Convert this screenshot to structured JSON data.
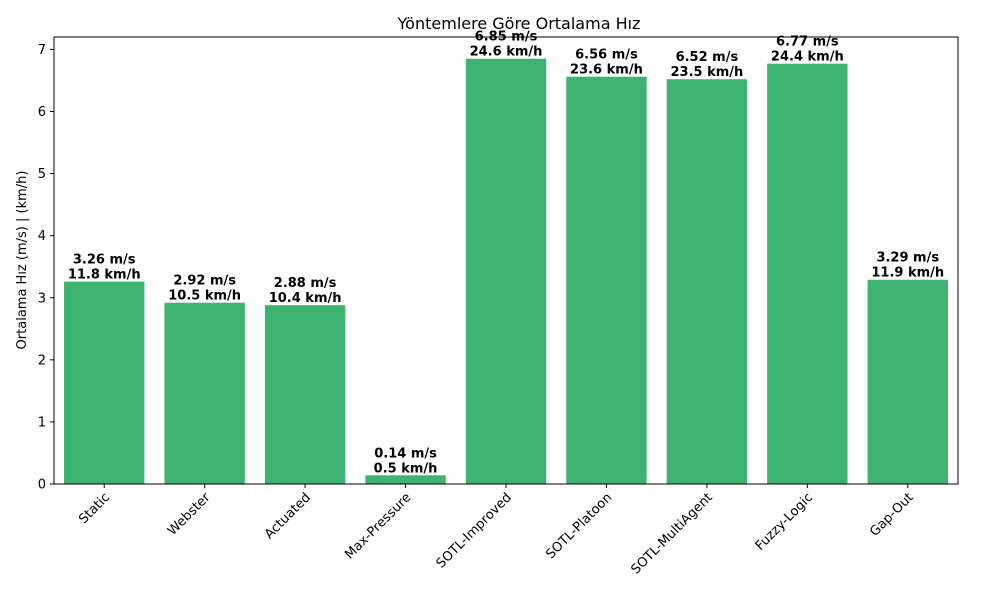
{
  "chart_data": {
    "type": "bar",
    "title": "Yöntemlere Göre Ortalama Hız",
    "xlabel": "",
    "ylabel": "Ortalama Hız (m/s) | (km/h)",
    "categories": [
      "Static",
      "Webster",
      "Actuated",
      "Max-Pressure",
      "SOTL-Improved",
      "SOTL-Platoon",
      "SOTL-MultiAgent",
      "Fuzzy-Logic",
      "Gap-Out"
    ],
    "values": [
      3.26,
      2.92,
      2.88,
      0.14,
      6.85,
      6.56,
      6.52,
      6.77,
      3.29
    ],
    "labels_ms": [
      "3.26 m/s",
      "2.92 m/s",
      "2.88 m/s",
      "0.14 m/s",
      "6.85 m/s",
      "6.56 m/s",
      "6.52 m/s",
      "6.77 m/s",
      "3.29 m/s"
    ],
    "labels_kmh": [
      "11.8 km/h",
      "10.5 km/h",
      "10.4 km/h",
      "0.5 km/h",
      "24.6 km/h",
      "23.6 km/h",
      "23.5 km/h",
      "24.4 km/h",
      "11.9 km/h"
    ],
    "yticks": [
      "0",
      "1",
      "2",
      "3",
      "4",
      "5",
      "6",
      "7"
    ],
    "ylim": [
      0,
      7.2
    ],
    "grid": false,
    "bar_color": "#3cb371"
  }
}
